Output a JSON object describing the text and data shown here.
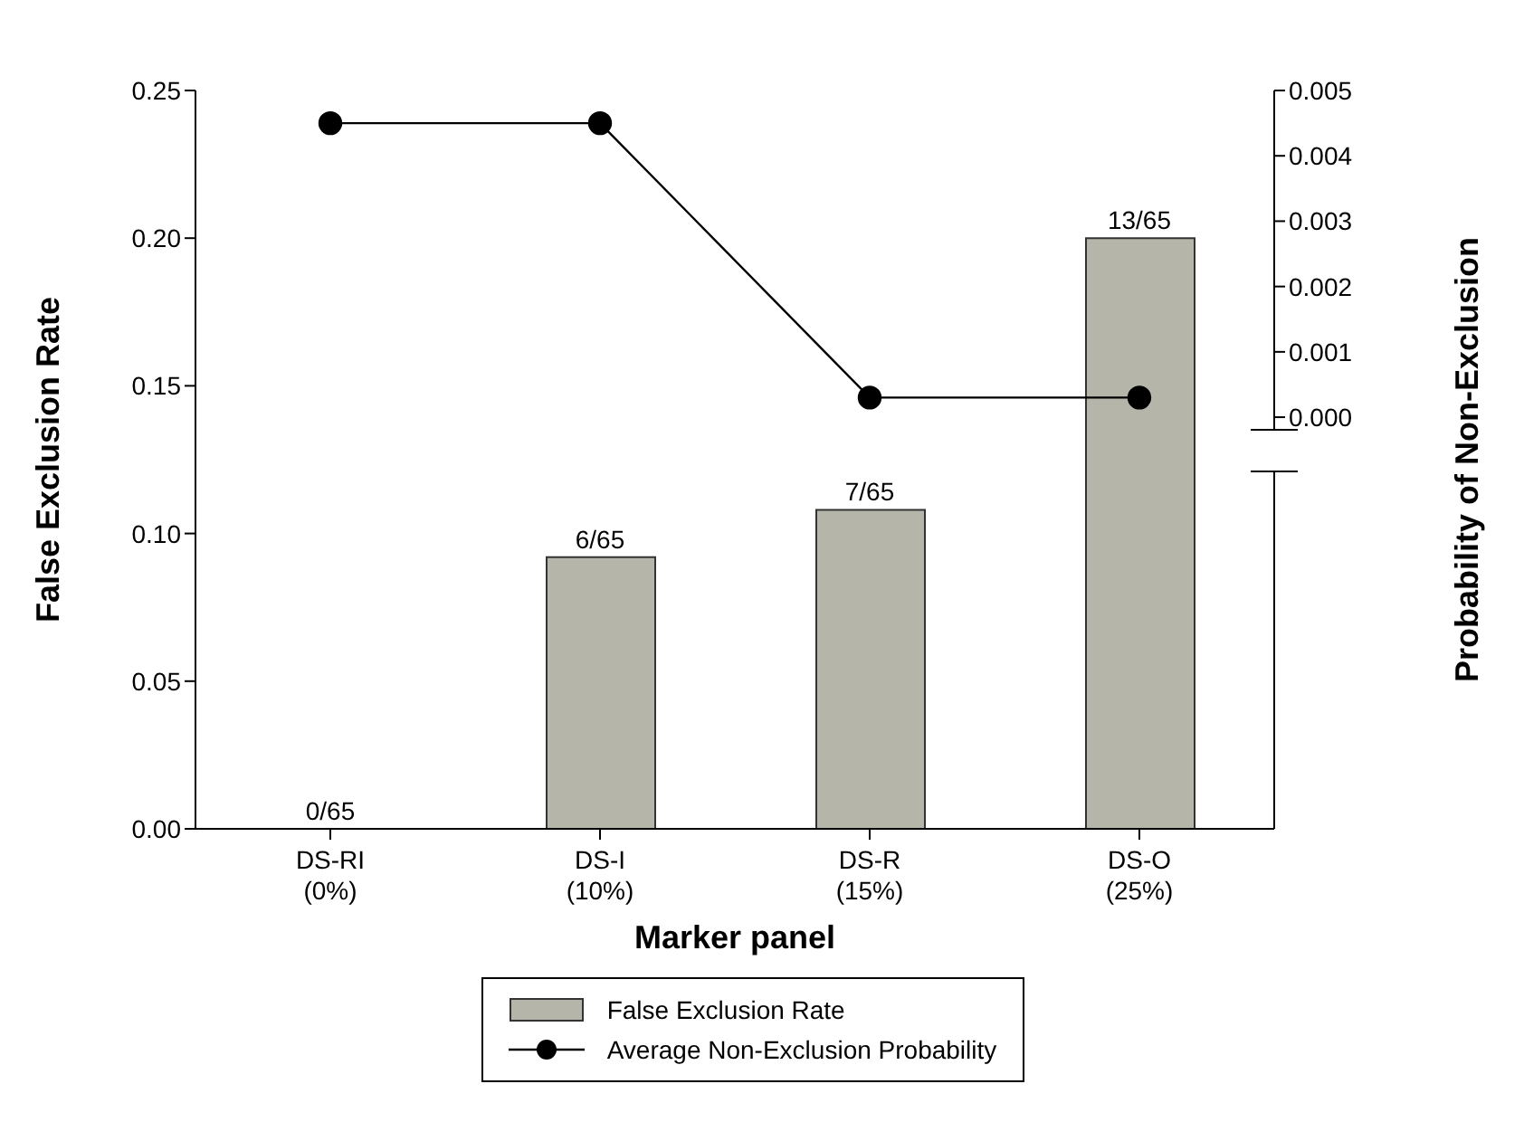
{
  "chart_data": {
    "type": "bar",
    "xlabel": "Marker panel",
    "ylabel": "False Exclusion Rate",
    "y2label": "Probability of Non-Exclusion",
    "categories": [
      "DS-RI\n(0%)",
      "DS-I\n(10%)",
      "DS-R\n(15%)",
      "DS-O\n(25%)"
    ],
    "series": [
      {
        "name": "False Exclusion Rate",
        "color": "#b5b5aa",
        "values": [
          0,
          0.092,
          0.108,
          0.2
        ],
        "value_labels": [
          "0/65",
          "6/65",
          "7/65",
          "13/65"
        ]
      },
      {
        "name": "Average Non-Exclusion Probability",
        "type": "line",
        "axis": "y2",
        "color": "#000000",
        "values": [
          0.0045,
          0.0045,
          0.0003,
          0.0003
        ],
        "marker": "circle"
      }
    ],
    "ylim": [
      0,
      0.25
    ],
    "yticks": [
      {
        "value": 0,
        "label": "0.00"
      },
      {
        "value": 0.05,
        "label": "0.05"
      },
      {
        "value": 0.1,
        "label": "0.10"
      },
      {
        "value": 0.15,
        "label": "0.15"
      },
      {
        "value": 0.2,
        "label": "0.20"
      },
      {
        "value": 0.25,
        "label": "0.25"
      }
    ],
    "y2lim": [
      -0.0063,
      0.005
    ],
    "y2ticks": [
      {
        "value": 0,
        "label": "0.000"
      },
      {
        "value": 0.001,
        "label": "0.001"
      },
      {
        "value": 0.002,
        "label": "0.002"
      },
      {
        "value": 0.003,
        "label": "0.003"
      },
      {
        "value": 0.004,
        "label": "0.004"
      },
      {
        "value": 0.005,
        "label": "0.005"
      }
    ],
    "grid": false,
    "legend": "bottom"
  }
}
